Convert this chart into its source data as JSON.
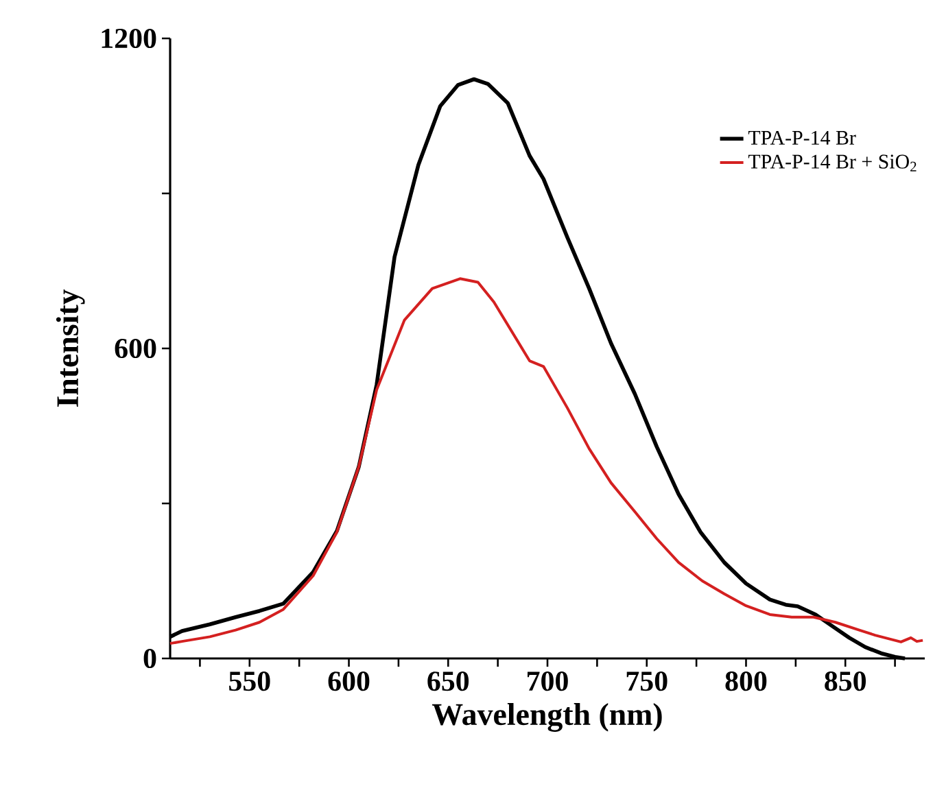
{
  "chart_data": {
    "type": "line",
    "xlabel": "Wavelength (nm)",
    "ylabel": "Intensity",
    "xlim": [
      510,
      890
    ],
    "ylim": [
      0,
      1200
    ],
    "xticks": [
      {
        "value": 525,
        "label": null
      },
      550,
      {
        "value": 575,
        "label": null
      },
      600,
      {
        "value": 625,
        "label": null
      },
      650,
      {
        "value": 675,
        "label": null
      },
      700,
      {
        "value": 725,
        "label": null
      },
      750,
      {
        "value": 775,
        "label": null
      },
      800,
      {
        "value": 825,
        "label": null
      },
      850,
      {
        "value": 875,
        "label": null
      }
    ],
    "yticks": [
      0,
      {
        "value": 300,
        "label": null
      },
      600,
      {
        "value": 900,
        "label": null
      },
      1200
    ],
    "grid": false,
    "legend": "top right",
    "marker": "none",
    "line_style": "solid",
    "series": [
      {
        "name": "TPA-P-14 Br",
        "color": "#000000",
        "x": [
          510,
          516,
          530,
          543,
          555,
          567,
          582,
          594,
          605,
          614,
          623,
          635,
          646,
          655,
          663,
          670,
          680,
          691,
          698,
          710,
          721,
          732,
          744,
          755,
          766,
          777,
          789,
          800,
          812,
          820,
          826,
          835,
          844,
          852,
          860,
          868,
          875,
          880
        ],
        "values": [
          42,
          53,
          66,
          80,
          92,
          106,
          167,
          247,
          371,
          530,
          777,
          955,
          1069,
          1110,
          1121,
          1112,
          1075,
          973,
          928,
          815,
          716,
          610,
          512,
          410,
          318,
          245,
          186,
          145,
          114,
          104,
          101,
          85,
          61,
          40,
          22,
          10,
          3,
          0
        ]
      },
      {
        "name": "TPA-P-14 Br + SiO$_{2}$",
        "color": "#d42020",
        "x": [
          510,
          516,
          530,
          543,
          555,
          567,
          582,
          594,
          605,
          614,
          628,
          642,
          656,
          665,
          673,
          691,
          698,
          710,
          721,
          732,
          744,
          755,
          766,
          778,
          789,
          800,
          812,
          823,
          834,
          845,
          857,
          865,
          872,
          878,
          883,
          886,
          889
        ],
        "values": [
          29,
          33,
          42,
          55,
          70,
          95,
          160,
          245,
          371,
          520,
          655,
          716,
          735,
          728,
          690,
          576,
          565,
          485,
          406,
          340,
          284,
          232,
          186,
          150,
          125,
          102,
          85,
          80,
          80,
          70,
          55,
          45,
          38,
          32,
          40,
          33,
          35
        ]
      }
    ]
  }
}
